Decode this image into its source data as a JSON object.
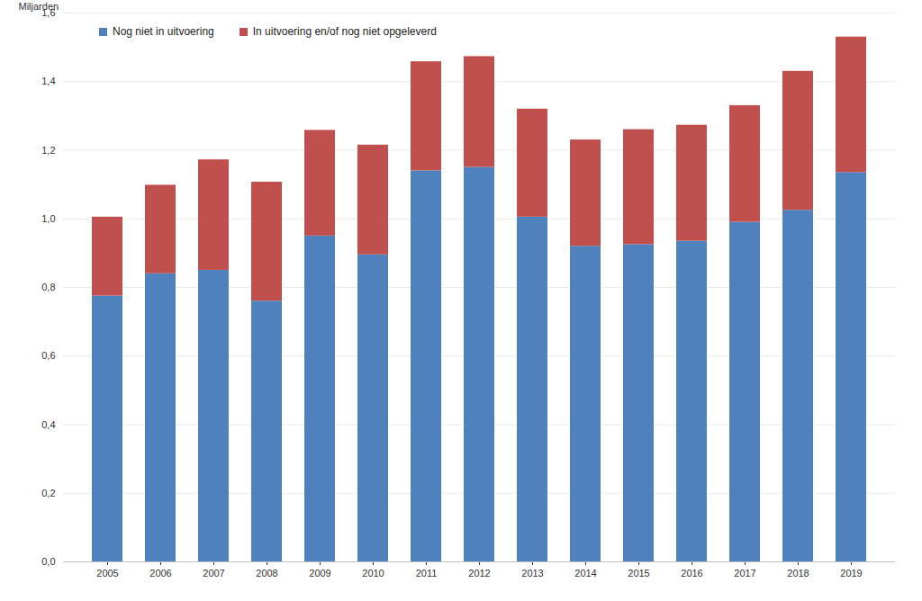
{
  "chart_data": {
    "type": "bar",
    "stacked": true,
    "grid": true,
    "legend": "top-left",
    "y_label": "Miljarden",
    "categories": [
      "2005",
      "2006",
      "2007",
      "2008",
      "2009",
      "2010",
      "2011",
      "2012",
      "2013",
      "2014",
      "2015",
      "2016",
      "2017",
      "2018",
      "2019"
    ],
    "series": [
      {
        "name": "Nog niet in uitvoering",
        "color": "#4f81bd",
        "values": [
          0.775,
          0.84,
          0.85,
          0.76,
          0.95,
          0.895,
          1.14,
          1.15,
          1.005,
          0.92,
          0.925,
          0.935,
          0.99,
          1.025,
          1.135
        ]
      },
      {
        "name": "In uitvoering en/of nog niet opgeleverd",
        "color": "#c0504d",
        "values": [
          0.23,
          0.258,
          0.322,
          0.347,
          0.308,
          0.32,
          0.318,
          0.323,
          0.315,
          0.31,
          0.335,
          0.338,
          0.34,
          0.405,
          0.395
        ]
      }
    ],
    "ylim": [
      0,
      1.6
    ],
    "yticks": [
      {
        "value": 0,
        "label": "0,0"
      },
      {
        "value": 0.2,
        "label": "0,2"
      },
      {
        "value": 0.4,
        "label": "0,4"
      },
      {
        "value": 0.6,
        "label": "0,6"
      },
      {
        "value": 0.8,
        "label": "0,8"
      },
      {
        "value": 1.0,
        "label": "1,0"
      },
      {
        "value": 1.2,
        "label": "1,2"
      },
      {
        "value": 1.4,
        "label": "1,4"
      },
      {
        "value": 1.6,
        "label": "1,6"
      }
    ]
  }
}
